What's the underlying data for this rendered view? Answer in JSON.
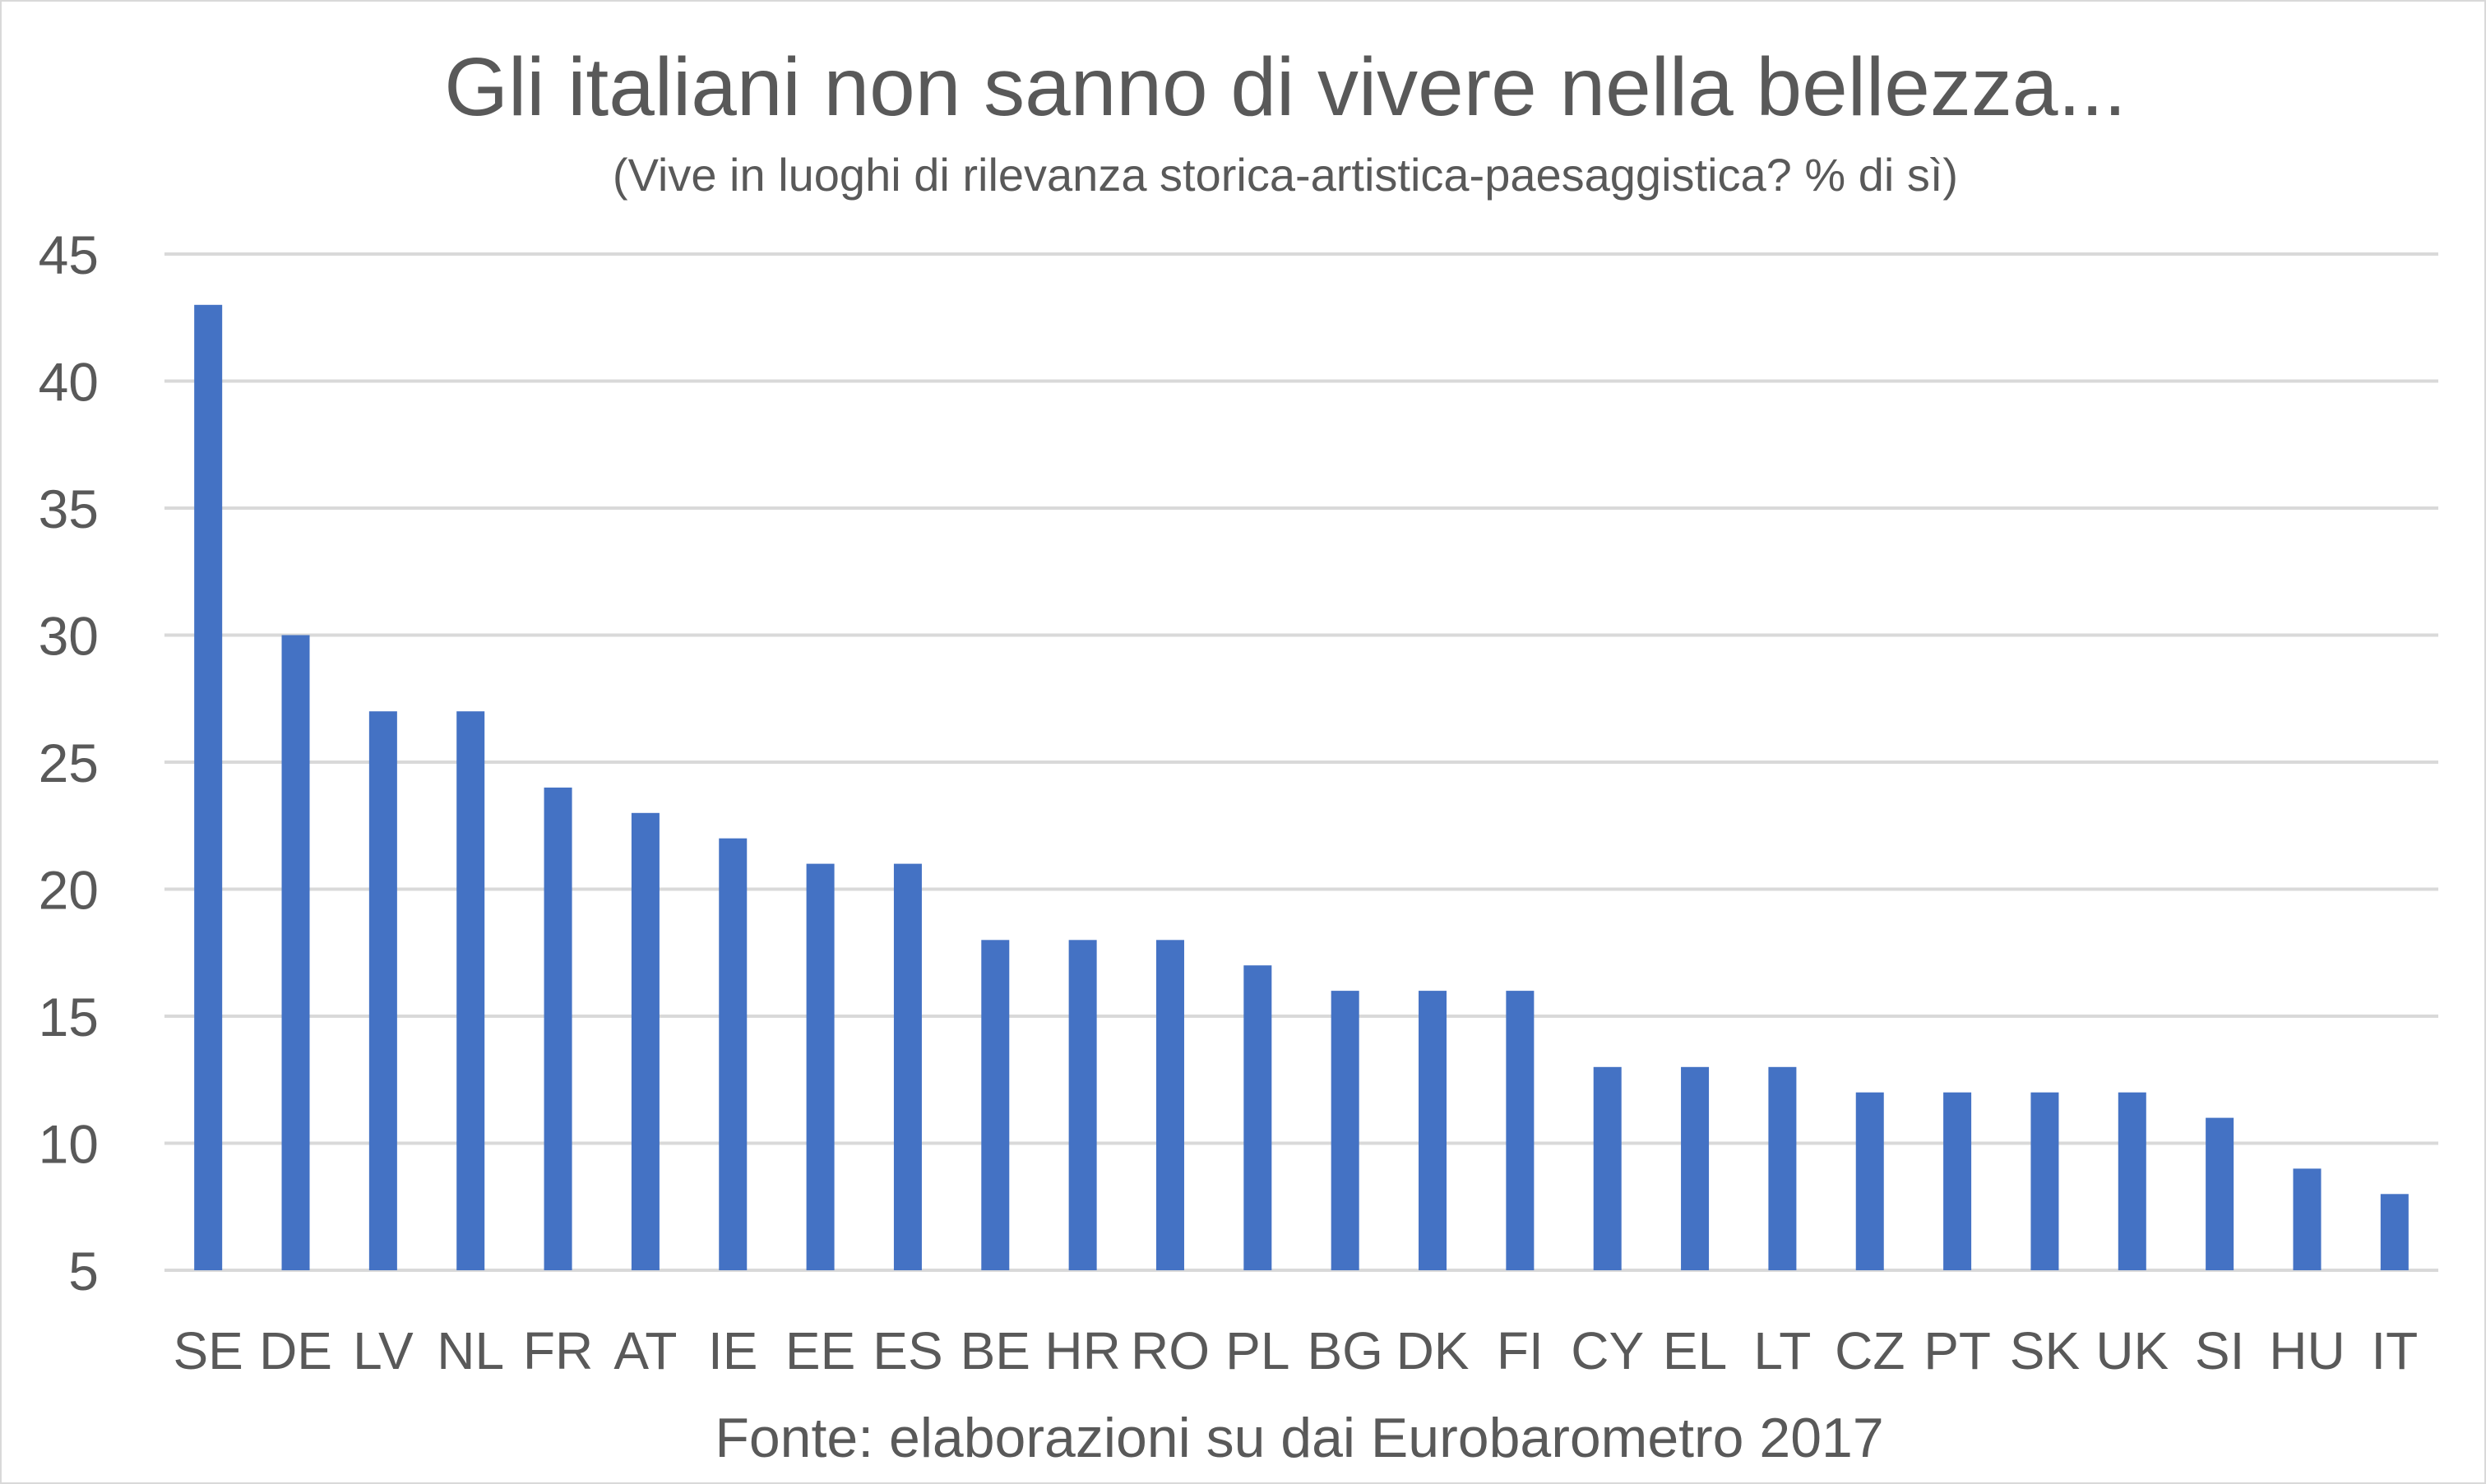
{
  "chart_data": {
    "type": "bar",
    "title": "Gli italiani non sanno di vivere nella bellezza...",
    "subtitle": "(Vive in luoghi di rilevanza storica-artistica-paesaggistica? % di sì)",
    "xlabel": "Fonte: elaborazioni su dai Eurobarometro 2017",
    "ylabel": "",
    "ylim": [
      5,
      45
    ],
    "yticks": [
      5,
      10,
      15,
      20,
      25,
      30,
      35,
      40,
      45
    ],
    "grid": true,
    "bar_color": "#4472c4",
    "categories": [
      "SE",
      "DE",
      "LV",
      "NL",
      "FR",
      "AT",
      "IE",
      "EE",
      "ES",
      "BE",
      "HR",
      "RO",
      "PL",
      "BG",
      "DK",
      "FI",
      "CY",
      "EL",
      "LT",
      "CZ",
      "PT",
      "SK",
      "UK",
      "SI",
      "HU",
      "IT"
    ],
    "values": [
      43,
      30,
      27,
      27,
      24,
      23,
      22,
      21,
      21,
      18,
      18,
      18,
      17,
      16,
      16,
      16,
      13,
      13,
      13,
      12,
      12,
      12,
      12,
      11,
      9,
      8
    ]
  }
}
